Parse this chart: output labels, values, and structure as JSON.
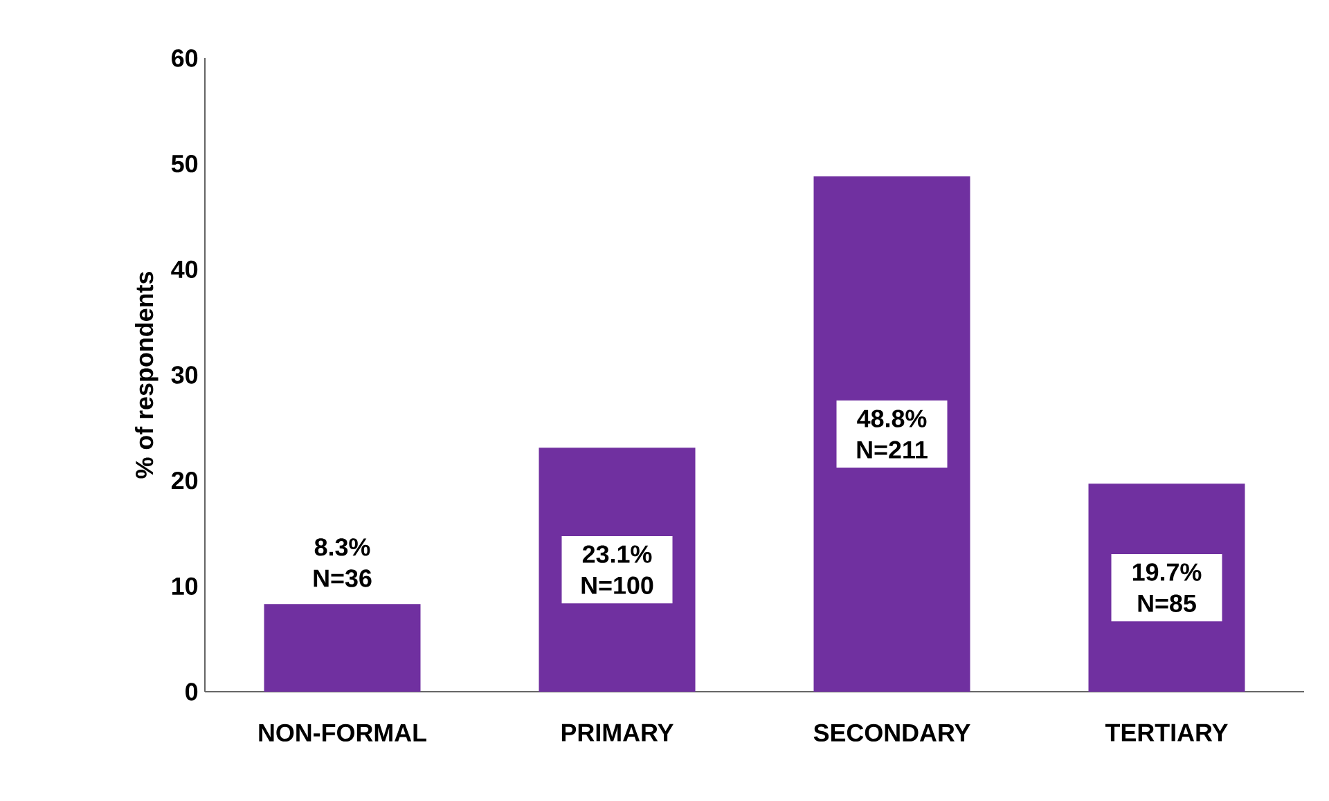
{
  "chart_data": {
    "type": "bar",
    "ylabel": "% of respondents",
    "categories": [
      "NON-FORMAL",
      "PRIMARY",
      "SECONDARY",
      "TERTIARY"
    ],
    "values": [
      8.3,
      23.1,
      48.8,
      19.7
    ],
    "value_labels": [
      "8.3% N=36",
      "23.1% N=100",
      "48.8% N=211",
      "19.7% N=85"
    ],
    "color": "#7030a0",
    "ylim": [
      0,
      60
    ],
    "yticks": [
      0,
      10,
      20,
      30,
      40,
      50,
      60
    ]
  }
}
